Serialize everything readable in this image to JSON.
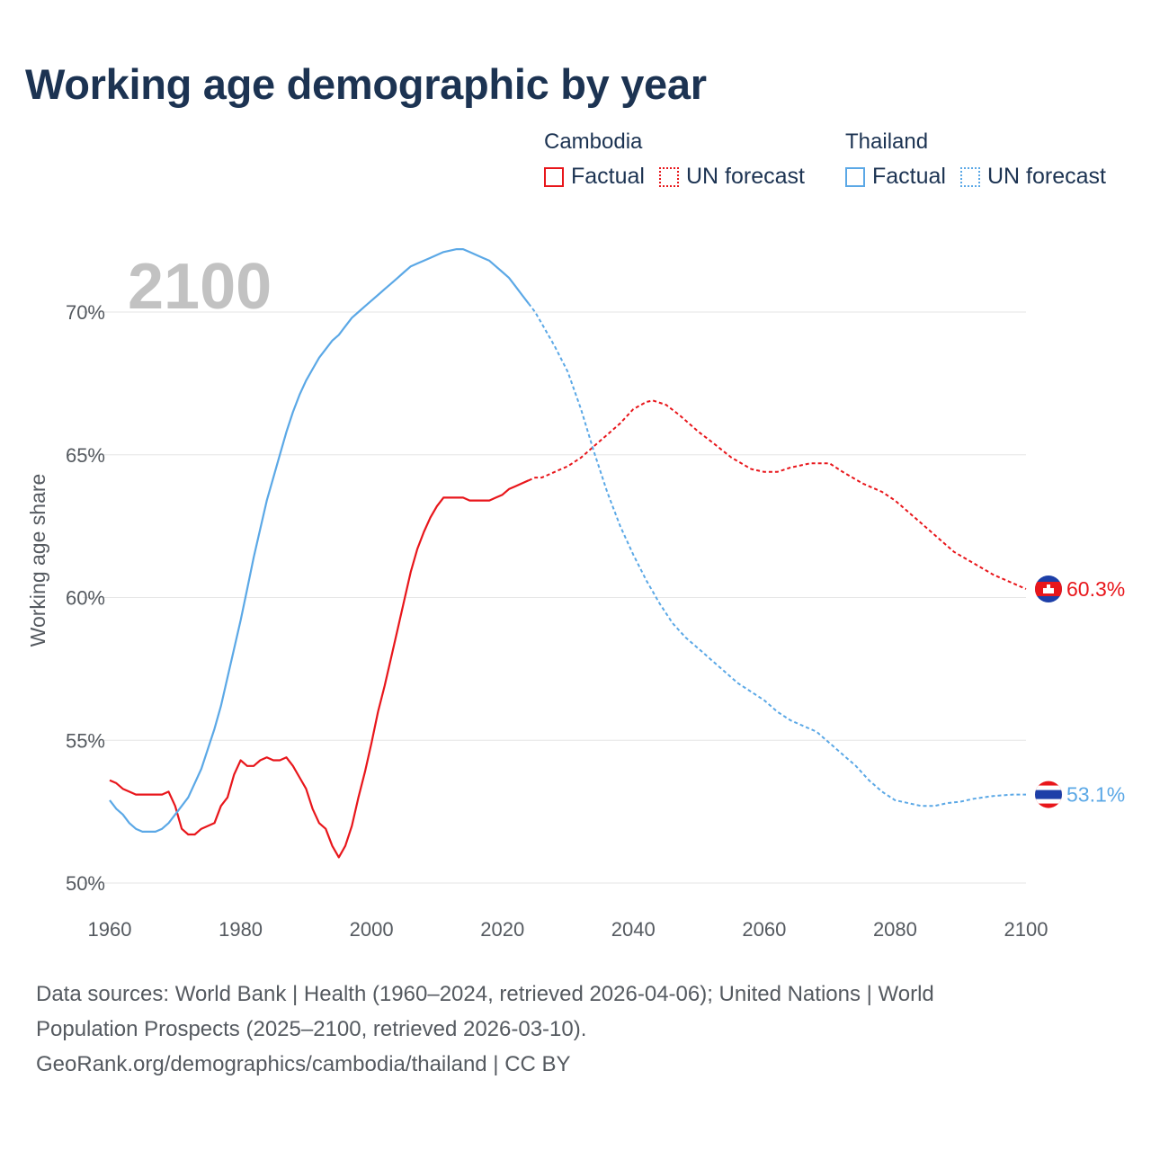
{
  "title": "Working age demographic by year",
  "legend": {
    "groups": [
      {
        "name": "Cambodia",
        "color": "#e8161b",
        "factual_label": "Factual",
        "forecast_label": "UN forecast"
      },
      {
        "name": "Thailand",
        "color": "#5ba8e6",
        "factual_label": "Factual",
        "forecast_label": "UN forecast"
      }
    ]
  },
  "source": {
    "line1": "Data sources: World Bank | Health (1960–2024, retrieved 2026-04-06); United Nations | World",
    "line2": "Population Prospects (2025–2100, retrieved 2026-03-10).",
    "line3": "GeoRank.org/demographics/cambodia/thailand | CC BY"
  },
  "chart_data": {
    "type": "line",
    "title": "Working age demographic by year",
    "current_year_label": "2100",
    "xlabel": "",
    "ylabel": "Working age share",
    "xlim": [
      1960,
      2100
    ],
    "ylim": [
      50,
      71.5
    ],
    "x_ticks": [
      1960,
      1980,
      2000,
      2020,
      2040,
      2060,
      2080,
      2100
    ],
    "y_ticks": [
      50,
      55,
      60,
      65,
      70
    ],
    "y_tick_labels": [
      "50%",
      "55%",
      "60%",
      "65%",
      "70%"
    ],
    "grid": true,
    "forecast_start_year": 2024,
    "series": [
      {
        "name": "Cambodia",
        "color": "#e8161b",
        "end_label": "60.3%",
        "points": [
          [
            1960,
            53.6
          ],
          [
            1961,
            53.5
          ],
          [
            1962,
            53.3
          ],
          [
            1963,
            53.2
          ],
          [
            1964,
            53.1
          ],
          [
            1965,
            53.1
          ],
          [
            1966,
            53.1
          ],
          [
            1967,
            53.1
          ],
          [
            1968,
            53.1
          ],
          [
            1969,
            53.2
          ],
          [
            1970,
            52.7
          ],
          [
            1971,
            51.9
          ],
          [
            1972,
            51.7
          ],
          [
            1973,
            51.7
          ],
          [
            1974,
            51.9
          ],
          [
            1975,
            52.0
          ],
          [
            1976,
            52.1
          ],
          [
            1977,
            52.7
          ],
          [
            1978,
            53.0
          ],
          [
            1979,
            53.8
          ],
          [
            1980,
            54.3
          ],
          [
            1981,
            54.1
          ],
          [
            1982,
            54.1
          ],
          [
            1983,
            54.3
          ],
          [
            1984,
            54.4
          ],
          [
            1985,
            54.3
          ],
          [
            1986,
            54.3
          ],
          [
            1987,
            54.4
          ],
          [
            1988,
            54.1
          ],
          [
            1989,
            53.7
          ],
          [
            1990,
            53.3
          ],
          [
            1991,
            52.6
          ],
          [
            1992,
            52.1
          ],
          [
            1993,
            51.9
          ],
          [
            1994,
            51.3
          ],
          [
            1995,
            50.9
          ],
          [
            1996,
            51.3
          ],
          [
            1997,
            52.0
          ],
          [
            1998,
            53.0
          ],
          [
            1999,
            53.9
          ],
          [
            2000,
            54.9
          ],
          [
            2001,
            56.0
          ],
          [
            2002,
            56.9
          ],
          [
            2003,
            57.9
          ],
          [
            2004,
            58.9
          ],
          [
            2005,
            59.9
          ],
          [
            2006,
            60.9
          ],
          [
            2007,
            61.7
          ],
          [
            2008,
            62.3
          ],
          [
            2009,
            62.8
          ],
          [
            2010,
            63.2
          ],
          [
            2011,
            63.5
          ],
          [
            2012,
            63.5
          ],
          [
            2013,
            63.5
          ],
          [
            2014,
            63.5
          ],
          [
            2015,
            63.4
          ],
          [
            2016,
            63.4
          ],
          [
            2017,
            63.4
          ],
          [
            2018,
            63.4
          ],
          [
            2019,
            63.5
          ],
          [
            2020,
            63.6
          ],
          [
            2021,
            63.8
          ],
          [
            2022,
            63.9
          ],
          [
            2023,
            64.0
          ],
          [
            2024,
            64.1
          ],
          [
            2025,
            64.2
          ],
          [
            2026,
            64.2
          ],
          [
            2027,
            64.3
          ],
          [
            2028,
            64.4
          ],
          [
            2029,
            64.5
          ],
          [
            2030,
            64.6
          ],
          [
            2032,
            64.9
          ],
          [
            2034,
            65.3
          ],
          [
            2036,
            65.7
          ],
          [
            2038,
            66.1
          ],
          [
            2040,
            66.6
          ],
          [
            2042,
            66.85
          ],
          [
            2043,
            66.9
          ],
          [
            2045,
            66.75
          ],
          [
            2047,
            66.4
          ],
          [
            2050,
            65.8
          ],
          [
            2052,
            65.45
          ],
          [
            2055,
            64.9
          ],
          [
            2058,
            64.5
          ],
          [
            2060,
            64.4
          ],
          [
            2062,
            64.4
          ],
          [
            2064,
            64.55
          ],
          [
            2067,
            64.7
          ],
          [
            2070,
            64.7
          ],
          [
            2072,
            64.4
          ],
          [
            2075,
            64.0
          ],
          [
            2078,
            63.7
          ],
          [
            2080,
            63.4
          ],
          [
            2083,
            62.8
          ],
          [
            2086,
            62.2
          ],
          [
            2089,
            61.6
          ],
          [
            2092,
            61.2
          ],
          [
            2095,
            60.8
          ],
          [
            2098,
            60.5
          ],
          [
            2100,
            60.3
          ]
        ]
      },
      {
        "name": "Thailand",
        "color": "#5ba8e6",
        "end_label": "53.1%",
        "points": [
          [
            1960,
            52.9
          ],
          [
            1961,
            52.6
          ],
          [
            1962,
            52.4
          ],
          [
            1963,
            52.1
          ],
          [
            1964,
            51.9
          ],
          [
            1965,
            51.8
          ],
          [
            1966,
            51.8
          ],
          [
            1967,
            51.8
          ],
          [
            1968,
            51.9
          ],
          [
            1969,
            52.1
          ],
          [
            1970,
            52.4
          ],
          [
            1971,
            52.7
          ],
          [
            1972,
            53.0
          ],
          [
            1973,
            53.5
          ],
          [
            1974,
            54.0
          ],
          [
            1975,
            54.7
          ],
          [
            1976,
            55.4
          ],
          [
            1977,
            56.2
          ],
          [
            1978,
            57.2
          ],
          [
            1979,
            58.2
          ],
          [
            1980,
            59.2
          ],
          [
            1981,
            60.3
          ],
          [
            1982,
            61.4
          ],
          [
            1983,
            62.4
          ],
          [
            1984,
            63.4
          ],
          [
            1985,
            64.2
          ],
          [
            1986,
            65.0
          ],
          [
            1987,
            65.8
          ],
          [
            1988,
            66.5
          ],
          [
            1989,
            67.1
          ],
          [
            1990,
            67.6
          ],
          [
            1991,
            68.0
          ],
          [
            1992,
            68.4
          ],
          [
            1993,
            68.7
          ],
          [
            1994,
            69.0
          ],
          [
            1995,
            69.2
          ],
          [
            1996,
            69.5
          ],
          [
            1997,
            69.8
          ],
          [
            1998,
            70.0
          ],
          [
            1999,
            70.2
          ],
          [
            2000,
            70.4
          ],
          [
            2001,
            70.6
          ],
          [
            2002,
            70.8
          ],
          [
            2003,
            71.0
          ],
          [
            2004,
            71.2
          ],
          [
            2005,
            71.4
          ],
          [
            2006,
            71.6
          ],
          [
            2007,
            71.7
          ],
          [
            2008,
            71.8
          ],
          [
            2009,
            71.9
          ],
          [
            2010,
            72.0
          ],
          [
            2011,
            72.1
          ],
          [
            2012,
            72.15
          ],
          [
            2013,
            72.2
          ],
          [
            2014,
            72.2
          ],
          [
            2015,
            72.1
          ],
          [
            2016,
            72.0
          ],
          [
            2017,
            71.9
          ],
          [
            2018,
            71.8
          ],
          [
            2019,
            71.6
          ],
          [
            2020,
            71.4
          ],
          [
            2021,
            71.2
          ],
          [
            2022,
            70.9
          ],
          [
            2023,
            70.6
          ],
          [
            2024,
            70.3
          ],
          [
            2025,
            70.0
          ],
          [
            2026,
            69.6
          ],
          [
            2028,
            68.8
          ],
          [
            2030,
            67.9
          ],
          [
            2032,
            66.6
          ],
          [
            2034,
            65.1
          ],
          [
            2036,
            63.7
          ],
          [
            2038,
            62.5
          ],
          [
            2040,
            61.5
          ],
          [
            2042,
            60.6
          ],
          [
            2044,
            59.8
          ],
          [
            2046,
            59.1
          ],
          [
            2048,
            58.6
          ],
          [
            2050,
            58.2
          ],
          [
            2052,
            57.8
          ],
          [
            2054,
            57.4
          ],
          [
            2056,
            57.0
          ],
          [
            2058,
            56.7
          ],
          [
            2060,
            56.4
          ],
          [
            2062,
            56.0
          ],
          [
            2064,
            55.7
          ],
          [
            2066,
            55.5
          ],
          [
            2068,
            55.3
          ],
          [
            2070,
            54.9
          ],
          [
            2072,
            54.5
          ],
          [
            2074,
            54.1
          ],
          [
            2076,
            53.6
          ],
          [
            2078,
            53.2
          ],
          [
            2080,
            52.9
          ],
          [
            2082,
            52.8
          ],
          [
            2084,
            52.7
          ],
          [
            2086,
            52.7
          ],
          [
            2088,
            52.8
          ],
          [
            2090,
            52.85
          ],
          [
            2092,
            52.95
          ],
          [
            2095,
            53.05
          ],
          [
            2098,
            53.1
          ],
          [
            2100,
            53.1
          ]
        ]
      }
    ]
  }
}
